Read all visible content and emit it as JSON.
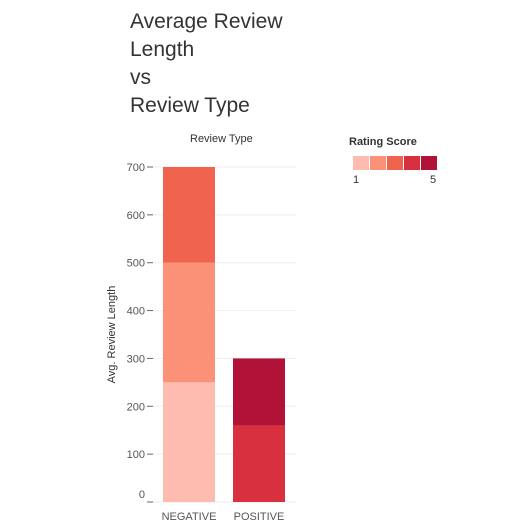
{
  "title_lines": [
    "Average Review",
    "Length",
    "vs",
    "Review Type"
  ],
  "header": "Review Type",
  "legend": {
    "title": "Rating Score",
    "min_label": "1",
    "max_label": "5",
    "colors": [
      "#fdbcaf",
      "#fb9277",
      "#f0644f",
      "#d93040",
      "#b01337"
    ]
  },
  "chart_data": {
    "type": "bar",
    "stacked": true,
    "categories": [
      "NEGATIVE",
      "POSITIVE"
    ],
    "series": [
      {
        "rating": 1,
        "color": "#fdbcaf",
        "values": [
          250,
          0
        ]
      },
      {
        "rating": 2,
        "color": "#fb9277",
        "values": [
          250,
          0
        ]
      },
      {
        "rating": 3,
        "color": "#f0644f",
        "values": [
          200,
          0
        ]
      },
      {
        "rating": 4,
        "color": "#d93040",
        "values": [
          0,
          160
        ]
      },
      {
        "rating": 5,
        "color": "#b01337",
        "values": [
          0,
          140
        ]
      }
    ],
    "title": "Average Review Length vs Review Type",
    "xlabel": "",
    "ylabel": "Avg. Review Length",
    "ylim": [
      0,
      720
    ],
    "yticks": [
      0,
      100,
      200,
      300,
      400,
      500,
      600,
      700
    ],
    "grid": true
  }
}
